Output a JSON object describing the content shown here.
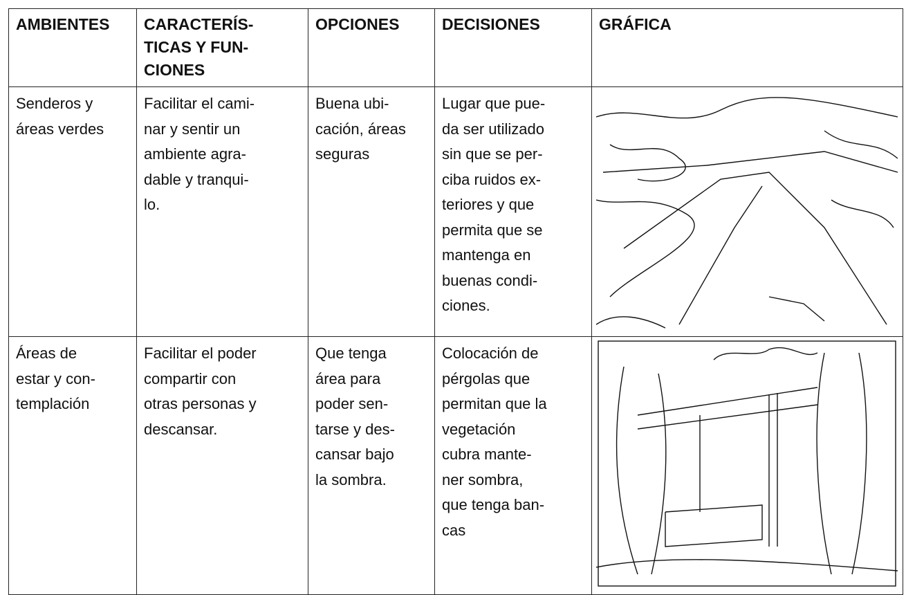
{
  "table": {
    "header": [
      [
        "AMBIENTES"
      ],
      [
        "CARACTERÍS-",
        "TICAS Y FUN-",
        "CIONES"
      ],
      [
        "OPCIONES"
      ],
      [
        "DECISIONES"
      ],
      [
        "GRÁFICA"
      ]
    ],
    "rows": [
      [
        [
          "Senderos y",
          "áreas verdes"
        ],
        [
          "Facilitar el cami-",
          "nar y sentir un",
          "ambiente agra-",
          "dable y tranqui-",
          "lo."
        ],
        [
          "Buena ubi-",
          "cación, áreas",
          "seguras"
        ],
        [
          "Lugar que pue-",
          "da ser utilizado",
          "sin que se per-",
          "ciba ruidos ex-",
          "teriores y que",
          "permita que se",
          "mantenga en",
          "buenas condi-",
          "ciones."
        ]
      ],
      [
        [
          "Áreas de",
          "estar y con-",
          "templación"
        ],
        [
          "Facilitar el poder",
          "compartir con",
          "otras personas y",
          "descansar."
        ],
        [
          "Que tenga",
          "área para",
          "poder sen-",
          "tarse y des-",
          "cansar bajo",
          "la sombra."
        ],
        [
          "Colocación de",
          "pérgolas que",
          "permitan que la",
          "vegetación",
          "cubra  mante-",
          "ner sombra,",
          "que tenga ban-",
          "cas"
        ]
      ]
    ]
  }
}
